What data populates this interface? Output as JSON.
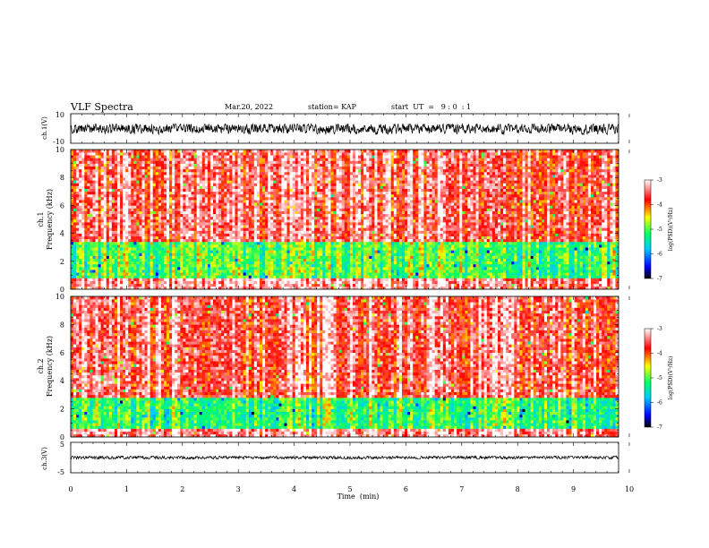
{
  "header": {
    "title": "VLF Spectra",
    "date": "Mar.20, 2022",
    "station": "station= KAP",
    "start": "start  UT  =   9 : 0  : 1"
  },
  "colors": {
    "waveform": "#000000",
    "colorbar": [
      "#000000",
      "#0000ff",
      "#00ccff",
      "#00ff66",
      "#ffff00",
      "#ff0000",
      "#ffffff"
    ]
  },
  "chart_data": [
    {
      "type": "line",
      "ylabel": "ch.1(V)",
      "ylim": [
        -10,
        10
      ],
      "yticks": [
        "10",
        "-10"
      ],
      "xlim": [
        0,
        10
      ],
      "description_values": "noisy waveform roughly between -4 and 3 V",
      "values_range": [
        -4,
        3
      ]
    },
    {
      "type": "heatmap",
      "ylabel_top": "ch.1",
      "ylabel": "Frequency (kHz)",
      "ylim": [
        0,
        10
      ],
      "yticks": [
        "0",
        "2",
        "4",
        "6",
        "8",
        "10"
      ],
      "xlim": [
        0,
        10
      ],
      "colorbar": {
        "label": "log(PSD)(V²/Hz)",
        "range": [
          -7,
          -3
        ],
        "ticks": [
          "-3",
          "-4",
          "-5",
          "-6",
          "-7"
        ]
      },
      "bands": [
        {
          "from_khz": 0,
          "to_khz": 0.8,
          "level": -3.3
        },
        {
          "from_khz": 0.8,
          "to_khz": 3.4,
          "level": -5.0
        },
        {
          "from_khz": 3.4,
          "to_khz": 10,
          "level": -3.5
        }
      ]
    },
    {
      "type": "heatmap",
      "ylabel_top": "ch.2",
      "ylabel": "Frequency (kHz)",
      "ylim": [
        0,
        10
      ],
      "yticks": [
        "0",
        "2",
        "4",
        "6",
        "8",
        "10"
      ],
      "xlim": [
        0,
        10
      ],
      "colorbar": {
        "label": "log(PSD)(V²/Hz)",
        "range": [
          -7,
          -3
        ],
        "ticks": [
          "-3",
          "-4",
          "-5",
          "-6",
          "-7"
        ]
      },
      "bands": [
        {
          "from_khz": 0,
          "to_khz": 0.6,
          "level": -3.3
        },
        {
          "from_khz": 0.6,
          "to_khz": 2.8,
          "level": -5.1
        },
        {
          "from_khz": 2.8,
          "to_khz": 10,
          "level": -3.5
        }
      ]
    },
    {
      "type": "line",
      "ylabel": "ch.3(V)",
      "ylim": [
        -5,
        5
      ],
      "yticks": [
        "5",
        "-5"
      ],
      "xlim": [
        0,
        10
      ],
      "values_range": [
        -0.5,
        0.5
      ]
    }
  ],
  "xaxis": {
    "label": "Time  (min)",
    "ticks": [
      "0",
      "1",
      "2",
      "3",
      "4",
      "5",
      "6",
      "7",
      "8",
      "9",
      "10"
    ]
  }
}
